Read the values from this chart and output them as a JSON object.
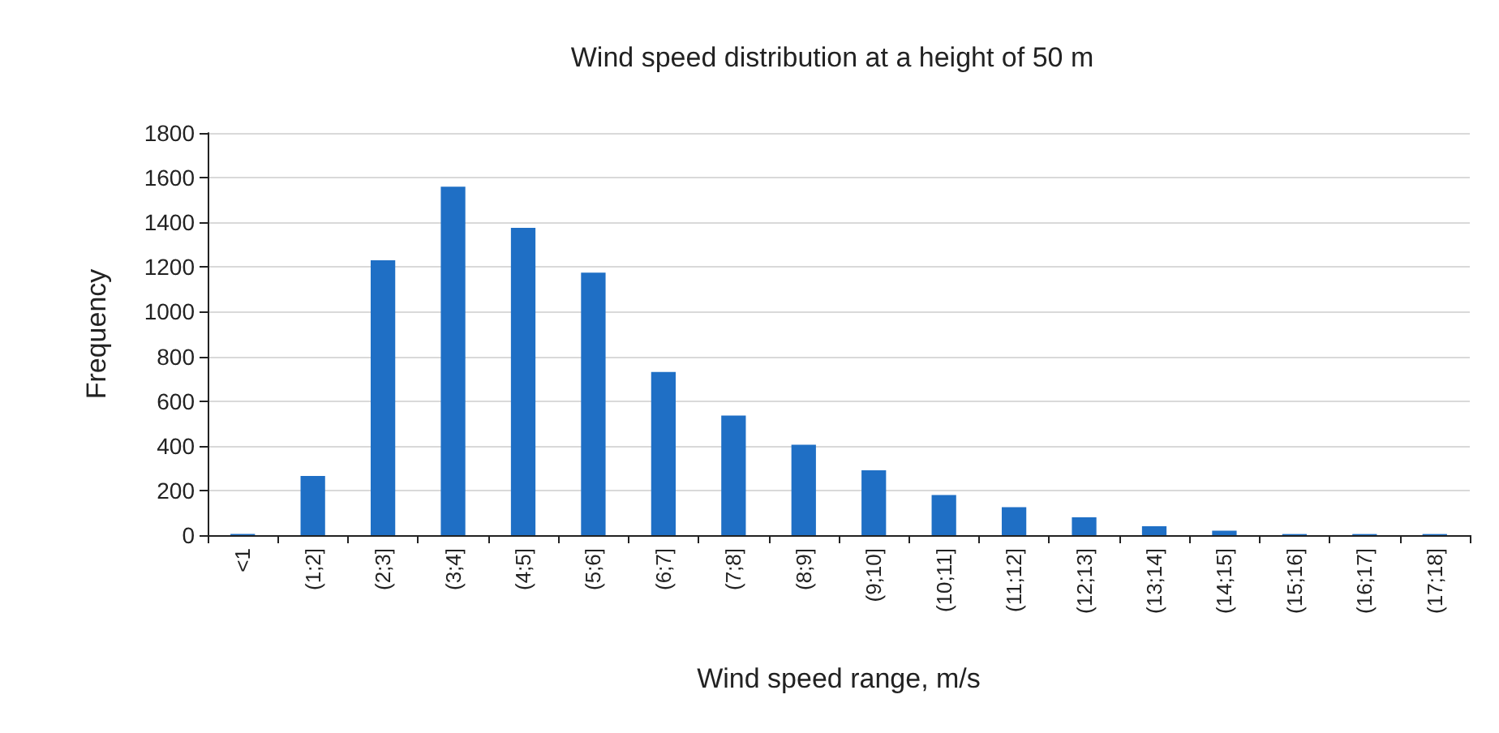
{
  "chart_data": {
    "type": "bar",
    "title": "Wind speed distribution at a height of 50 m",
    "xlabel": "Wind speed range, m/s",
    "ylabel": "Frequency",
    "categories": [
      "<1",
      "(1;2]",
      "(2;3]",
      "(3;4]",
      "(4;5]",
      "(5;6]",
      "(6;7]",
      "(7;8]",
      "(8;9]",
      "(9;10]",
      "(10;11]",
      "(11;12]",
      "(12;13]",
      "(13;14]",
      "(14;15]",
      "(15;16]",
      "(16;17]",
      "(17;18]"
    ],
    "values": [
      5,
      265,
      1230,
      1560,
      1375,
      1175,
      730,
      535,
      405,
      290,
      180,
      125,
      80,
      40,
      20,
      5,
      5,
      5
    ],
    "color": "#1f6fc5",
    "ylim": [
      0,
      1800
    ],
    "yticks": [
      0,
      200,
      400,
      600,
      800,
      1000,
      1200,
      1400,
      1600,
      1800
    ],
    "grid": "y"
  }
}
